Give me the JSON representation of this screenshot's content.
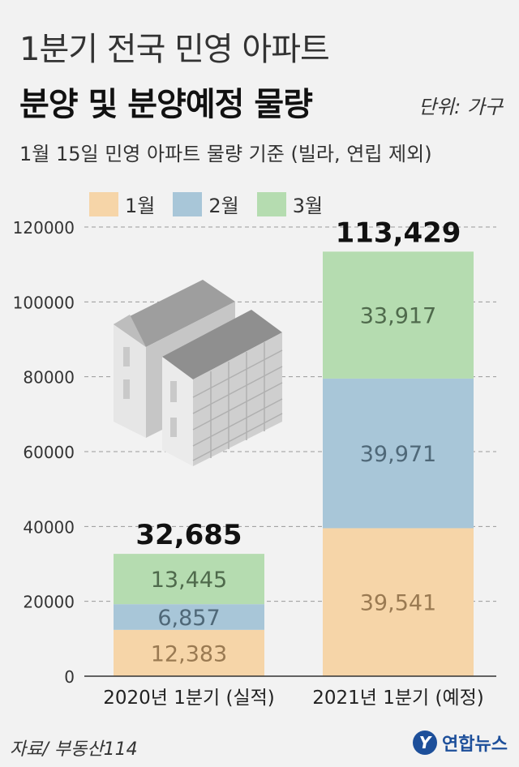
{
  "header": {
    "title_line1": "1분기 전국 민영 아파트",
    "title_line2": "분양 및 분양예정 물량",
    "unit": "단위: 가구",
    "subtitle": "1월 15일 민영 아파트 물량 기준 (빌라, 연립 제외)"
  },
  "chart_data": {
    "type": "bar",
    "stacked": true,
    "categories": [
      "2020년 1분기 (실적)",
      "2021년 1분기 (예정)"
    ],
    "series": [
      {
        "name": "1월",
        "values": [
          12383,
          39541
        ],
        "color": "#f6d5a8"
      },
      {
        "name": "2월",
        "values": [
          6857,
          39971
        ],
        "color": "#a8c6d8"
      },
      {
        "name": "3월",
        "values": [
          13445,
          33917
        ],
        "color": "#b5dcb0"
      }
    ],
    "data_labels": [
      [
        "12,383",
        "6,857",
        "13,445"
      ],
      [
        "39,541",
        "39,971",
        "33,917"
      ]
    ],
    "totals": [
      "32,685",
      "113,429"
    ],
    "yticks": [
      "0",
      "20000",
      "40000",
      "60000",
      "80000",
      "100000",
      "120000"
    ],
    "ylim": [
      0,
      120000
    ],
    "grid": true,
    "legend_position": "top",
    "label_colors": {
      "1월": "#9a7a52",
      "2월": "#4f6878",
      "3월": "#4f6a4c"
    }
  },
  "footer": {
    "source": "자료/ 부동산114",
    "logo_text": "연합뉴스",
    "logo_mark": "Y"
  }
}
